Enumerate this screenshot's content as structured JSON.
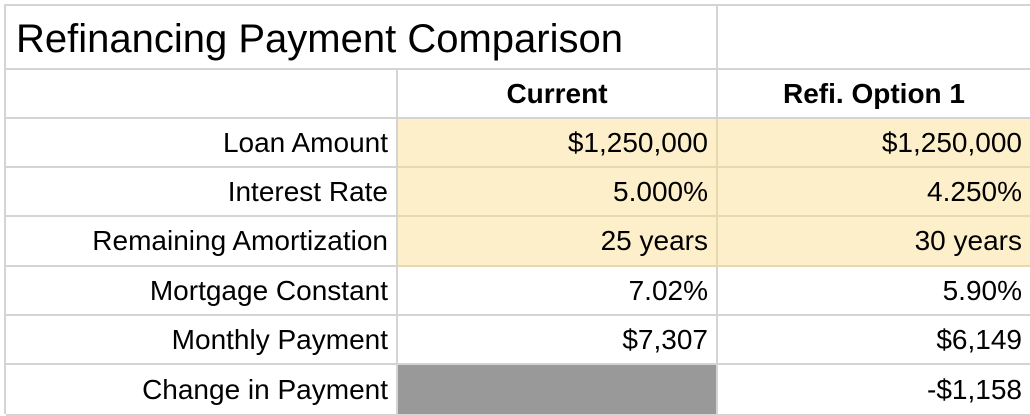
{
  "title": "Refinancing Payment Comparison",
  "headers": {
    "current": "Current",
    "refi": "Refi. Option 1"
  },
  "rows": [
    {
      "label": "Loan Amount",
      "current": "$1,250,000",
      "refi": "$1,250,000"
    },
    {
      "label": "Interest Rate",
      "current": "5.000%",
      "refi": "4.250%"
    },
    {
      "label": "Remaining Amortization",
      "current": "25 years",
      "refi": "30 years"
    },
    {
      "label": "Mortgage Constant",
      "current": "7.02%",
      "refi": "5.90%"
    },
    {
      "label": "Monthly Payment",
      "current": "$7,307",
      "refi": "$6,149"
    },
    {
      "label": "Change in Payment",
      "current": "",
      "refi": "-$1,158"
    }
  ],
  "colors": {
    "input_fill": "#fdefc9",
    "blocked_fill": "#999999",
    "gridline": "#d4d4d4"
  }
}
